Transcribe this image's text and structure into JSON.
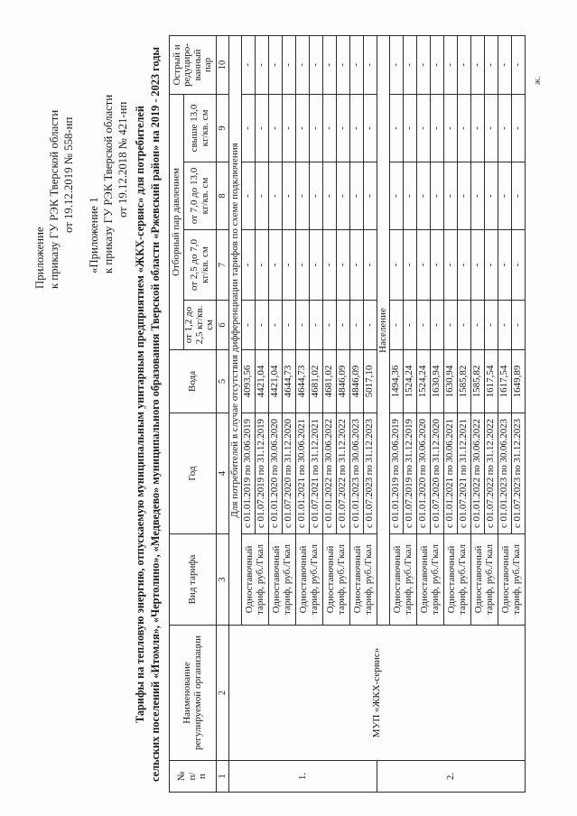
{
  "document": {
    "appendix1": {
      "lines": [
        "Приложение",
        "к приказу ГУ РЭК Тверской области",
        "от 19.12.2019 № 558-нп"
      ]
    },
    "appendix2": {
      "lines": [
        "«Приложение 1",
        "к приказу ГУ РЭК Тверской области",
        "от 19.12.2018 № 421-нп"
      ]
    },
    "title_lines": [
      "Тарифы на тепловую энергию, отпускаемую муниципальным унитарным предприятием «ЖКХ-сервис» для потребителей",
      "сельских поселений «Итомля», «Чертолино», «Медведево» муниципального образования Тверской области «Ржевский район» на 2019 - 2023 годы"
    ],
    "side_mark": "ж."
  },
  "table": {
    "header": {
      "num": "№\nп/\nп",
      "org": "Наименование\nрегулируемой организации",
      "tariff_type": "Вид тарифа",
      "year": "Год",
      "water": "Вода",
      "steam_group": "Отборный пар давлением",
      "steam_cols": [
        "от 1,2 до\n2,5 кг/кв.\nсм",
        "от 2,5 до 7,0\nкг/кв. см",
        "от 7,0 до 13,0\nкг/кв. см",
        "свыше 13,0\nкг/кв. см"
      ],
      "sharp_steam": "Острый и\nредуциро-\nванный\nпар",
      "col_numbers": [
        "1",
        "2",
        "3",
        "4",
        "5",
        "6",
        "7",
        "8",
        "9",
        "10"
      ]
    },
    "org_name": "МУП «ЖКХ-сервис»",
    "sections": [
      {
        "row_no": "1.",
        "label": "Для потребителей в случае отсутствия дифференциации тарифов по схеме подключения",
        "tariff_label": "Одноставочный\nтариф, руб./Гкал",
        "entries": [
          {
            "period": "с 01.01.2019 по 30.06.2019",
            "water": "4093,56",
            "other": "-"
          },
          {
            "period": "с 01.07.2019 по 31.12.2019",
            "water": "4421,04",
            "other": "-"
          },
          {
            "period": "с 01.01.2020 по 30.06.2020",
            "water": "4421,04",
            "other": "-"
          },
          {
            "period": "с 01.07.2020 по 31.12.2020",
            "water": "4644,73",
            "other": "-"
          },
          {
            "period": "с 01.01.2021 по 30.06.2021",
            "water": "4644,73",
            "other": "-"
          },
          {
            "period": "с 01.07.2021 по 31.12.2021",
            "water": "4681,02",
            "other": "-"
          },
          {
            "period": "с 01.01.2022 по 30.06.2022",
            "water": "4681,02",
            "other": "-"
          },
          {
            "period": "с 01.07.2022 по 31.12.2022",
            "water": "4846,09",
            "other": "-"
          },
          {
            "period": "с 01.01.2023 по 30.06.2023",
            "water": "4846,09",
            "other": "-"
          },
          {
            "period": "с 01.07.2023 по 31.12.2023",
            "water": "5017,10",
            "other": "-"
          }
        ]
      },
      {
        "row_no": "2.",
        "label": "Население",
        "tariff_label": "Одноставочный\nтариф, руб./Гкал",
        "entries": [
          {
            "period": "с 01.01.2019 по 30.06.2019",
            "water": "1494,36",
            "other": "-"
          },
          {
            "period": "с 01.07.2019 по 31.12.2019",
            "water": "1524,24",
            "other": "-"
          },
          {
            "period": "с 01.01.2020 по 30.06.2020",
            "water": "1524,24",
            "other": "-"
          },
          {
            "period": "с 01.07.2020 по 31.12.2020",
            "water": "1630,94",
            "other": "-"
          },
          {
            "period": "с 01.01.2021 по 30.06.2021",
            "water": "1630,94",
            "other": "-"
          },
          {
            "period": "с 01.07.2021 по 31.12.2021",
            "water": "1585,82",
            "other": "-"
          },
          {
            "period": "с 01.01.2022 по 30.06.2022",
            "water": "1585,82",
            "other": "-"
          },
          {
            "period": "с 01.07.2022 по 31.12.2022",
            "water": "1617,54",
            "other": "-"
          },
          {
            "period": "с 01.01.2023 по 30.06.2023",
            "water": "1617,54",
            "other": "-"
          },
          {
            "period": "с 01.07.2023 по 31.12.2023",
            "water": "1649,89",
            "other": "-"
          }
        ]
      }
    ]
  }
}
